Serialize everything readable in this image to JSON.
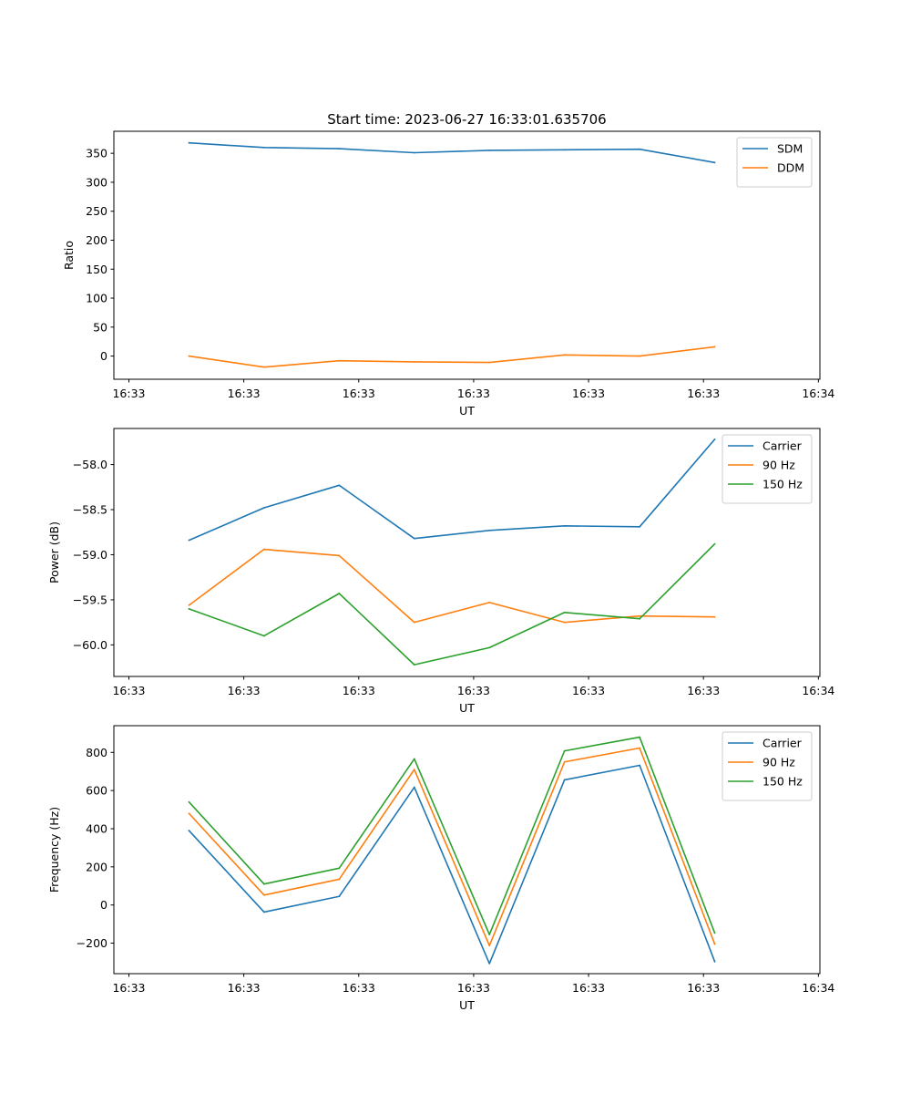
{
  "figure_title": "Start time: 2023-06-27 16:33:01.635706",
  "colors": {
    "blue": "#1f77b4",
    "orange": "#ff7f0e",
    "green": "#2ca02c"
  },
  "chart_data": [
    {
      "type": "line",
      "title": "",
      "xlabel": "UT",
      "ylabel": "Ratio",
      "x": [
        1,
        2,
        3,
        4,
        5,
        6,
        7,
        8
      ],
      "x_tick_values": [
        0.2,
        1.73,
        3.26,
        4.79,
        6.32,
        7.85,
        9.38
      ],
      "x_tick_labels": [
        "16:33",
        "16:33",
        "16:33",
        "16:33",
        "16:33",
        "16:33",
        "16:34"
      ],
      "xlim": [
        0,
        9.4
      ],
      "ylim": [
        -40,
        388
      ],
      "y_ticks": [
        0,
        50,
        100,
        150,
        200,
        250,
        300,
        350
      ],
      "y_tick_labels": [
        "0",
        "50",
        "100",
        "150",
        "200",
        "250",
        "300",
        "350"
      ],
      "legend_position": "top-right",
      "series": [
        {
          "name": "SDM",
          "color": "#1f77b4",
          "values": [
            368,
            360,
            358,
            351,
            355,
            356,
            357,
            334
          ]
        },
        {
          "name": "DDM",
          "color": "#ff7f0e",
          "values": [
            0,
            -19,
            -8,
            -10,
            -11,
            2,
            0,
            16
          ]
        }
      ]
    },
    {
      "type": "line",
      "title": "",
      "xlabel": "UT",
      "ylabel": "Power (dB)",
      "x": [
        1,
        2,
        3,
        4,
        5,
        6,
        7,
        8
      ],
      "x_tick_values": [
        0.2,
        1.73,
        3.26,
        4.79,
        6.32,
        7.85,
        9.38
      ],
      "x_tick_labels": [
        "16:33",
        "16:33",
        "16:33",
        "16:33",
        "16:33",
        "16:33",
        "16:34"
      ],
      "xlim": [
        0,
        9.4
      ],
      "ylim": [
        -60.35,
        -57.6
      ],
      "y_ticks": [
        -60.0,
        -59.5,
        -59.0,
        -58.5,
        -58.0
      ],
      "y_tick_labels": [
        "−60.0",
        "−59.5",
        "−59.0",
        "−58.5",
        "−58.0"
      ],
      "legend_position": "top-right",
      "series": [
        {
          "name": "Carrier",
          "color": "#1f77b4",
          "values": [
            -58.84,
            -58.48,
            -58.23,
            -58.82,
            -58.73,
            -58.68,
            -58.69,
            -57.72
          ]
        },
        {
          "name": "90 Hz",
          "color": "#ff7f0e",
          "values": [
            -59.56,
            -58.94,
            -59.01,
            -59.75,
            -59.53,
            -59.75,
            -59.68,
            -59.69
          ]
        },
        {
          "name": "150 Hz",
          "color": "#2ca02c",
          "values": [
            -59.6,
            -59.9,
            -59.43,
            -60.22,
            -60.03,
            -59.64,
            -59.71,
            -58.88
          ]
        }
      ]
    },
    {
      "type": "line",
      "title": "",
      "xlabel": "UT",
      "ylabel": "Frequency (Hz)",
      "x": [
        1,
        2,
        3,
        4,
        5,
        6,
        7,
        8
      ],
      "x_tick_values": [
        0.2,
        1.73,
        3.26,
        4.79,
        6.32,
        7.85,
        9.38
      ],
      "x_tick_labels": [
        "16:33",
        "16:33",
        "16:33",
        "16:33",
        "16:33",
        "16:33",
        "16:34"
      ],
      "xlim": [
        0,
        9.4
      ],
      "ylim": [
        -360,
        940
      ],
      "y_ticks": [
        -200,
        0,
        200,
        400,
        600,
        800
      ],
      "y_tick_labels": [
        "−200",
        "0",
        "200",
        "400",
        "600",
        "800"
      ],
      "legend_position": "top-right",
      "series": [
        {
          "name": "Carrier",
          "color": "#1f77b4",
          "values": [
            390,
            -37,
            45,
            617,
            -307,
            656,
            732,
            -297
          ]
        },
        {
          "name": "90 Hz",
          "color": "#ff7f0e",
          "values": [
            480,
            52,
            135,
            710,
            -213,
            750,
            823,
            -205
          ]
        },
        {
          "name": "150 Hz",
          "color": "#2ca02c",
          "values": [
            540,
            110,
            193,
            766,
            -155,
            808,
            880,
            -147
          ]
        }
      ]
    }
  ]
}
